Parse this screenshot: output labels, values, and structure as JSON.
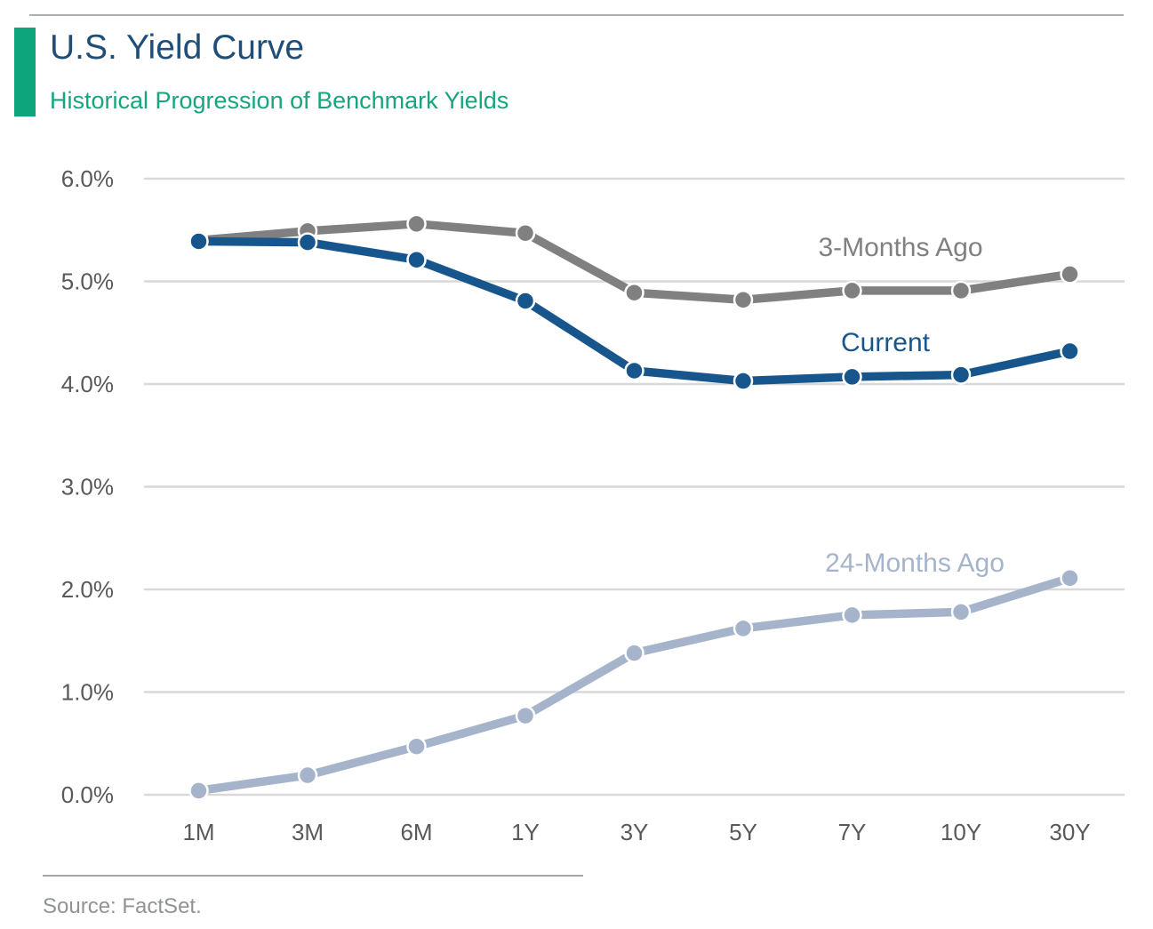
{
  "header": {
    "title": "U.S. Yield Curve",
    "subtitle": "Historical Progression of Benchmark Yields"
  },
  "source": {
    "text": "Source: FactSet."
  },
  "colors": {
    "title": "#1f4e79",
    "subtitle": "#16a57e",
    "accent_bar": "#0ca57c",
    "gridline": "#d9d9d9",
    "tick_label": "#595959",
    "rule": "#a6a6a6",
    "current_line": "#17568c",
    "three_months_line": "#808080",
    "twenty_four_months_line": "#a5b4cb"
  },
  "chart_data": {
    "type": "line",
    "categories": [
      "1M",
      "3M",
      "6M",
      "1Y",
      "3Y",
      "5Y",
      "7Y",
      "10Y",
      "30Y"
    ],
    "series": [
      {
        "name": "3-Months Ago",
        "color": "#808080",
        "values": [
          5.4,
          5.49,
          5.56,
          5.47,
          4.89,
          4.82,
          4.91,
          4.91,
          5.07
        ]
      },
      {
        "name": "Current",
        "color": "#17568c",
        "values": [
          5.39,
          5.38,
          5.21,
          4.81,
          4.13,
          4.03,
          4.07,
          4.09,
          4.32
        ]
      },
      {
        "name": "24-Months Ago",
        "color": "#a5b4cb",
        "values": [
          0.04,
          0.19,
          0.47,
          0.77,
          1.38,
          1.62,
          1.75,
          1.78,
          2.11
        ]
      }
    ],
    "title": "U.S. Yield Curve",
    "subtitle": "Historical Progression of Benchmark Yields",
    "xlabel": "",
    "ylabel": "",
    "y_ticks": [
      "0.0%",
      "1.0%",
      "2.0%",
      "3.0%",
      "4.0%",
      "5.0%",
      "6.0%"
    ],
    "ylim": [
      0.0,
      6.0
    ],
    "grid": "horizontal",
    "legend": "inline-labels-near-lines"
  }
}
